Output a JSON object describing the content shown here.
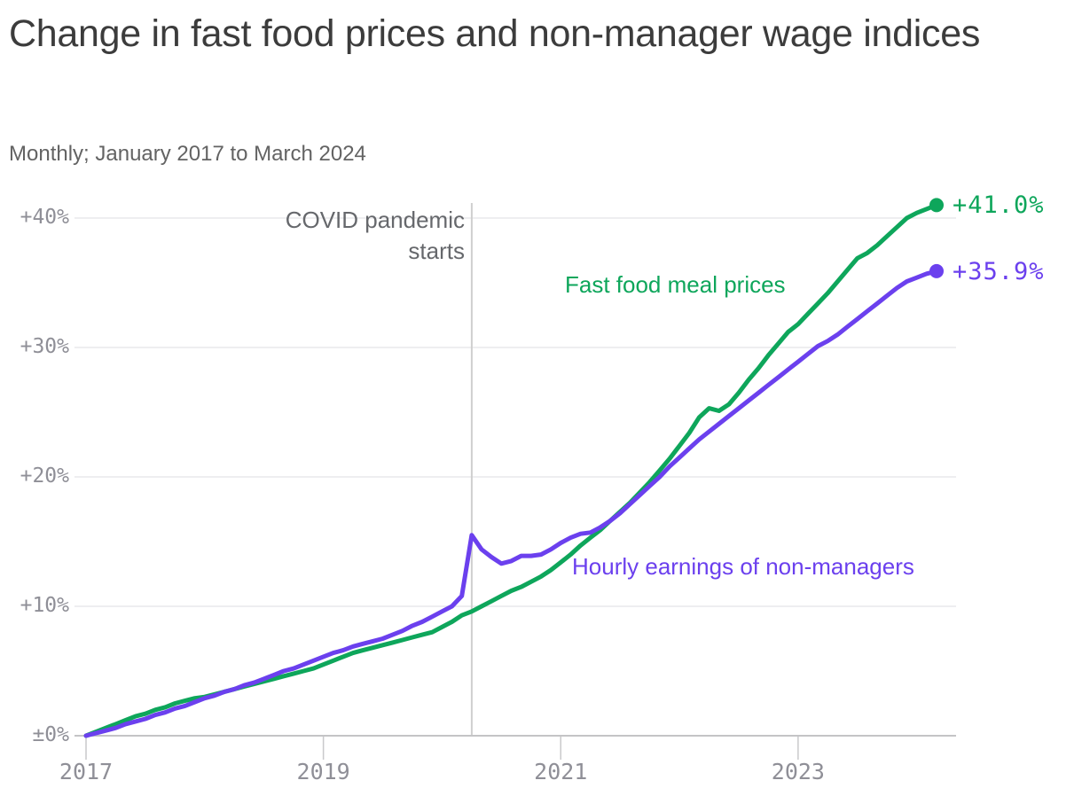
{
  "page": {
    "title": "Change in fast food prices and non-manager wage indices",
    "subtitle": "Monthly; January 2017 to March 2024"
  },
  "chart_data": {
    "type": "line",
    "title": "Change in fast food prices and non-manager wage indices",
    "subtitle": "Monthly; January 2017 to March 2024",
    "x": {
      "unit": "month",
      "start": "2017-01",
      "end": "2024-03",
      "tick_labels": [
        "2017",
        "2019",
        "2021",
        "2023"
      ],
      "tick_month_indices": [
        0,
        24,
        48,
        72
      ]
    },
    "y": {
      "unit": "percent change",
      "range": [
        0,
        43
      ],
      "tick_values": [
        0,
        10,
        20,
        30,
        40
      ],
      "tick_labels": [
        "±0%",
        "+10%",
        "+20%",
        "+30%",
        "+40%"
      ],
      "grid": true
    },
    "annotation": {
      "lines": [
        "COVID pandemic",
        "starts"
      ],
      "month_index": 39,
      "color": "#66686c",
      "line_color": "#cfcfcf"
    },
    "legend_position": "inline-labels",
    "series": [
      {
        "name": "Fast food meal prices",
        "color": "#0ea65b",
        "end_label": "+41.0%",
        "end_value": 41.0,
        "values": [
          0,
          0.3,
          0.6,
          0.9,
          1.2,
          1.5,
          1.7,
          2.0,
          2.2,
          2.5,
          2.7,
          2.9,
          3.0,
          3.2,
          3.4,
          3.6,
          3.8,
          4.0,
          4.2,
          4.4,
          4.6,
          4.8,
          5.0,
          5.2,
          5.5,
          5.8,
          6.1,
          6.4,
          6.6,
          6.8,
          7.0,
          7.2,
          7.4,
          7.6,
          7.8,
          8.0,
          8.4,
          8.8,
          9.3,
          9.6,
          10.0,
          10.4,
          10.8,
          11.2,
          11.5,
          11.9,
          12.3,
          12.8,
          13.4,
          14.0,
          14.7,
          15.3,
          15.9,
          16.6,
          17.3,
          18.0,
          18.8,
          19.6,
          20.5,
          21.4,
          22.4,
          23.4,
          24.6,
          25.3,
          25.1,
          25.6,
          26.5,
          27.5,
          28.4,
          29.4,
          30.3,
          31.2,
          31.8,
          32.6,
          33.4,
          34.2,
          35.1,
          36.0,
          36.9,
          37.3,
          37.9,
          38.6,
          39.3,
          40.0,
          40.4,
          40.7,
          41.0
        ]
      },
      {
        "name": "Hourly earnings of non-managers",
        "color": "#6b40ee",
        "end_label": "+35.9%",
        "end_value": 35.9,
        "values": [
          0,
          0.2,
          0.4,
          0.6,
          0.9,
          1.1,
          1.3,
          1.6,
          1.8,
          2.1,
          2.3,
          2.6,
          2.9,
          3.1,
          3.4,
          3.6,
          3.9,
          4.1,
          4.4,
          4.7,
          5.0,
          5.2,
          5.5,
          5.8,
          6.1,
          6.4,
          6.6,
          6.9,
          7.1,
          7.3,
          7.5,
          7.8,
          8.1,
          8.5,
          8.8,
          9.2,
          9.6,
          10.0,
          10.8,
          15.5,
          14.4,
          13.8,
          13.3,
          13.5,
          13.9,
          13.9,
          14.0,
          14.4,
          14.9,
          15.3,
          15.6,
          15.7,
          16.1,
          16.6,
          17.2,
          17.9,
          18.6,
          19.3,
          20.0,
          20.8,
          21.5,
          22.2,
          22.9,
          23.5,
          24.1,
          24.7,
          25.3,
          25.9,
          26.5,
          27.1,
          27.7,
          28.3,
          28.9,
          29.5,
          30.1,
          30.5,
          31.0,
          31.6,
          32.2,
          32.8,
          33.4,
          34.0,
          34.6,
          35.1,
          35.4,
          35.7,
          35.9
        ]
      }
    ]
  }
}
